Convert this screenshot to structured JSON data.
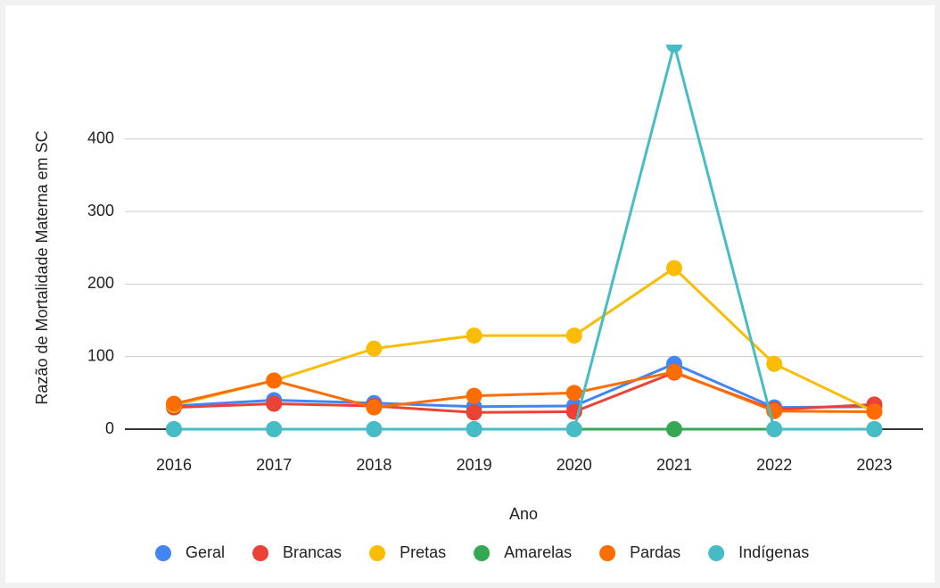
{
  "chart_data": {
    "type": "line",
    "x_label": "Ano",
    "y_label": "Razão de Mortalidade Materna em SC",
    "categories": [
      "2016",
      "2017",
      "2018",
      "2019",
      "2020",
      "2021",
      "2022",
      "2023"
    ],
    "series": [
      {
        "name": "Geral",
        "color": "#4285f4",
        "values": [
          32,
          40,
          36,
          31,
          32,
          90,
          30,
          31
        ]
      },
      {
        "name": "Brancas",
        "color": "#ea4335",
        "values": [
          30,
          35,
          32,
          23,
          24,
          78,
          27,
          34
        ]
      },
      {
        "name": "Pretas",
        "color": "#fbbc04",
        "values": [
          33,
          67,
          111,
          129,
          129,
          222,
          90,
          24
        ]
      },
      {
        "name": "Amarelas",
        "color": "#34a853",
        "values": [
          0,
          0,
          0,
          0,
          0,
          0,
          0,
          0
        ]
      },
      {
        "name": "Pardas",
        "color": "#ff6d01",
        "values": [
          35,
          67,
          30,
          46,
          50,
          79,
          25,
          24
        ]
      },
      {
        "name": "Indígenas",
        "color": "#46bdc6",
        "values": [
          0,
          0,
          0,
          0,
          0,
          530,
          0,
          0
        ]
      }
    ],
    "ylim": [
      0,
      530
    ],
    "yticks": [
      0,
      100,
      200,
      300,
      400
    ],
    "grid": true,
    "legend": "bottom"
  }
}
